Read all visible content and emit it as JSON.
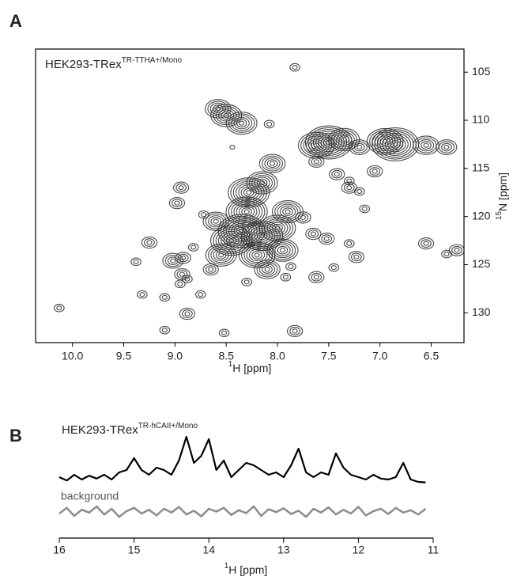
{
  "chart_data": [
    {
      "type": "contour",
      "panel": "A",
      "title": "HEK293-TRex",
      "title_sup": "TR-TTHA+/Mono",
      "xlabel_sup": "1",
      "xlabel": "H [ppm]",
      "ylabel_sup": "15",
      "ylabel": "N [ppm]",
      "color": "#2a2a2a",
      "xlim": [
        10.36,
        6.18
      ],
      "ylim": [
        102.6,
        133.1
      ],
      "xticks": [
        {
          "value": 10,
          "label": "10.0"
        },
        9.5,
        {
          "value": 9,
          "label": "9.0"
        },
        8.5,
        {
          "value": 8,
          "label": "8.0"
        },
        7.5,
        {
          "value": 7,
          "label": "7.0"
        },
        6.5
      ],
      "yticks": [
        105,
        110,
        115,
        120,
        125,
        130
      ],
      "x": [
        8.5,
        8.35,
        8.58,
        7.83,
        8.08,
        8.44,
        7.5,
        7.62,
        7.35,
        6.85,
        6.95,
        6.55,
        6.35,
        7.2,
        8.05,
        8.15,
        8.28,
        8.3,
        8.35,
        8.15,
        8.0,
        8.45,
        8.2,
        7.95,
        7.9,
        8.6,
        8.55,
        8.1,
        8.94,
        8.98,
        8.72,
        7.75,
        7.65,
        7.52,
        7.3,
        7.62,
        7.42,
        7.3,
        7.2,
        7.05,
        7.3,
        7.15,
        7.23,
        6.55,
        6.25,
        6.35,
        9.25,
        8.82,
        9.02,
        8.92,
        8.65,
        9.38,
        8.93,
        8.88,
        8.95,
        8.3,
        7.62,
        7.45,
        7.87,
        7.92,
        9.32,
        9.1,
        8.88,
        9.1,
        8.52,
        7.83,
        10.13,
        8.75
      ],
      "y": [
        109.5,
        110.3,
        108.8,
        104.5,
        110.4,
        112.8,
        112.3,
        112.6,
        112.0,
        112.5,
        112.2,
        112.6,
        112.8,
        112.8,
        114.5,
        116.5,
        117.5,
        119.5,
        121.5,
        122,
        121.2,
        122.5,
        124,
        123.5,
        119.5,
        120.5,
        124,
        125.5,
        117.0,
        118.6,
        119.8,
        120.1,
        121.8,
        122.3,
        122.8,
        114.3,
        115.6,
        117.0,
        117.4,
        115.3,
        116.3,
        119.2,
        124.2,
        122.8,
        123.5,
        123.9,
        122.7,
        123.2,
        124.6,
        124.3,
        125.5,
        124.7,
        126.0,
        126.5,
        127.0,
        126.8,
        126.3,
        125.3,
        125.2,
        126.3,
        128.1,
        128.4,
        130.1,
        131.8,
        132.1,
        131.9,
        129.5,
        128.1
      ],
      "intensity": [
        6,
        6,
        5,
        2,
        2,
        1,
        9,
        7,
        6,
        9,
        7,
        5,
        4,
        4,
        5,
        6,
        8,
        8,
        9,
        8,
        7,
        8,
        7,
        6,
        6,
        5,
        6,
        5,
        3,
        3,
        2,
        3,
        3,
        3,
        2,
        3,
        3,
        3,
        2,
        3,
        2,
        2,
        3,
        3,
        3,
        2,
        3,
        2,
        4,
        3,
        3,
        2,
        3,
        2,
        2,
        2,
        3,
        2,
        2,
        2,
        2,
        2,
        3,
        2,
        2,
        3,
        2,
        2
      ]
    },
    {
      "type": "line",
      "panel": "B",
      "title": "HEK293-TRex",
      "title_sup": "TR-hCAII+/Mono",
      "xlabel_sup": "1",
      "xlabel": "H [ppm]",
      "xlim": [
        16,
        11
      ],
      "xticks": [
        16,
        15,
        14,
        13,
        12,
        11
      ],
      "x": [
        16.0,
        15.9,
        15.8,
        15.7,
        15.6,
        15.5,
        15.4,
        15.3,
        15.2,
        15.1,
        15.0,
        14.9,
        14.8,
        14.7,
        14.6,
        14.5,
        14.4,
        14.3,
        14.2,
        14.1,
        14.0,
        13.9,
        13.8,
        13.7,
        13.6,
        13.5,
        13.4,
        13.3,
        13.2,
        13.1,
        13.0,
        12.9,
        12.8,
        12.7,
        12.6,
        12.5,
        12.4,
        12.3,
        12.2,
        12.1,
        12.0,
        11.9,
        11.8,
        11.7,
        11.6,
        11.5,
        11.4,
        11.3,
        11.2,
        11.1
      ],
      "series": [
        {
          "color": "#000000",
          "values": [
            0.15,
            0.08,
            0.2,
            0.1,
            0.18,
            0.12,
            0.2,
            0.1,
            0.25,
            0.3,
            0.55,
            0.3,
            0.2,
            0.35,
            0.3,
            0.2,
            0.5,
            1.0,
            0.45,
            0.6,
            0.95,
            0.3,
            0.5,
            0.15,
            0.3,
            0.45,
            0.4,
            0.3,
            0.2,
            0.25,
            0.15,
            0.4,
            0.75,
            0.25,
            0.15,
            0.25,
            0.2,
            0.65,
            0.35,
            0.2,
            0.15,
            0.1,
            0.2,
            0.12,
            0.1,
            0.15,
            0.45,
            0.1,
            0.05,
            0.04
          ]
        },
        {
          "name": "background",
          "color": "#8c8c8c",
          "values": [
            0.1,
            0.22,
            0.05,
            0.18,
            0.12,
            0.25,
            0.08,
            0.2,
            0.03,
            0.15,
            0.22,
            0.1,
            0.18,
            0.06,
            0.2,
            0.12,
            0.24,
            0.08,
            0.16,
            0.04,
            0.2,
            0.14,
            0.22,
            0.07,
            0.17,
            0.11,
            0.25,
            0.05,
            0.19,
            0.13,
            0.21,
            0.09,
            0.16,
            0.03,
            0.2,
            0.12,
            0.23,
            0.08,
            0.18,
            0.1,
            0.24,
            0.06,
            0.15,
            0.2,
            0.09,
            0.22,
            0.12,
            0.17,
            0.08,
            0.2
          ]
        }
      ]
    }
  ]
}
